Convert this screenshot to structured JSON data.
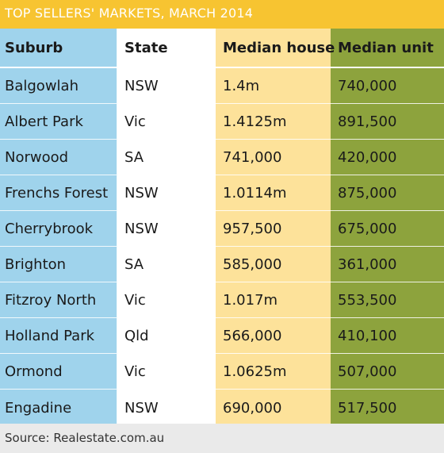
{
  "title": "TOP SELLERS' MARKETS, MARCH 2014",
  "columns": {
    "suburb": "Suburb",
    "state": "State",
    "median_house": "Median house",
    "median_unit": "Median unit"
  },
  "rows": [
    {
      "suburb": "Balgowlah",
      "state": "NSW",
      "median_house": "1.4m",
      "median_unit": "740,000"
    },
    {
      "suburb": "Albert Park",
      "state": "Vic",
      "median_house": "1.4125m",
      "median_unit": "891,500"
    },
    {
      "suburb": "Norwood",
      "state": "SA",
      "median_house": "741,000",
      "median_unit": "420,000"
    },
    {
      "suburb": "Frenchs Forest",
      "state": "NSW",
      "median_house": "1.0114m",
      "median_unit": "875,000"
    },
    {
      "suburb": "Cherrybrook",
      "state": "NSW",
      "median_house": "957,500",
      "median_unit": "675,000"
    },
    {
      "suburb": "Brighton",
      "state": "SA",
      "median_house": "585,000",
      "median_unit": "361,000"
    },
    {
      "suburb": "Fitzroy North",
      "state": "Vic",
      "median_house": "1.017m",
      "median_unit": "553,500"
    },
    {
      "suburb": "Holland Park",
      "state": "Qld",
      "median_house": "566,000",
      "median_unit": "410,100"
    },
    {
      "suburb": "Ormond",
      "state": "Vic",
      "median_house": "1.0625m",
      "median_unit": "507,000"
    },
    {
      "suburb": "Engadine",
      "state": "NSW",
      "median_house": "690,000",
      "median_unit": "517,500"
    }
  ],
  "source": "Source: Realestate.com.au",
  "colors": {
    "banner": "#f7c431",
    "suburb_col": "#9fd3ec",
    "state_col": "#ffffff",
    "house_col": "#fde29a",
    "unit_col": "#8da33d",
    "footer": "#eaeaea"
  }
}
